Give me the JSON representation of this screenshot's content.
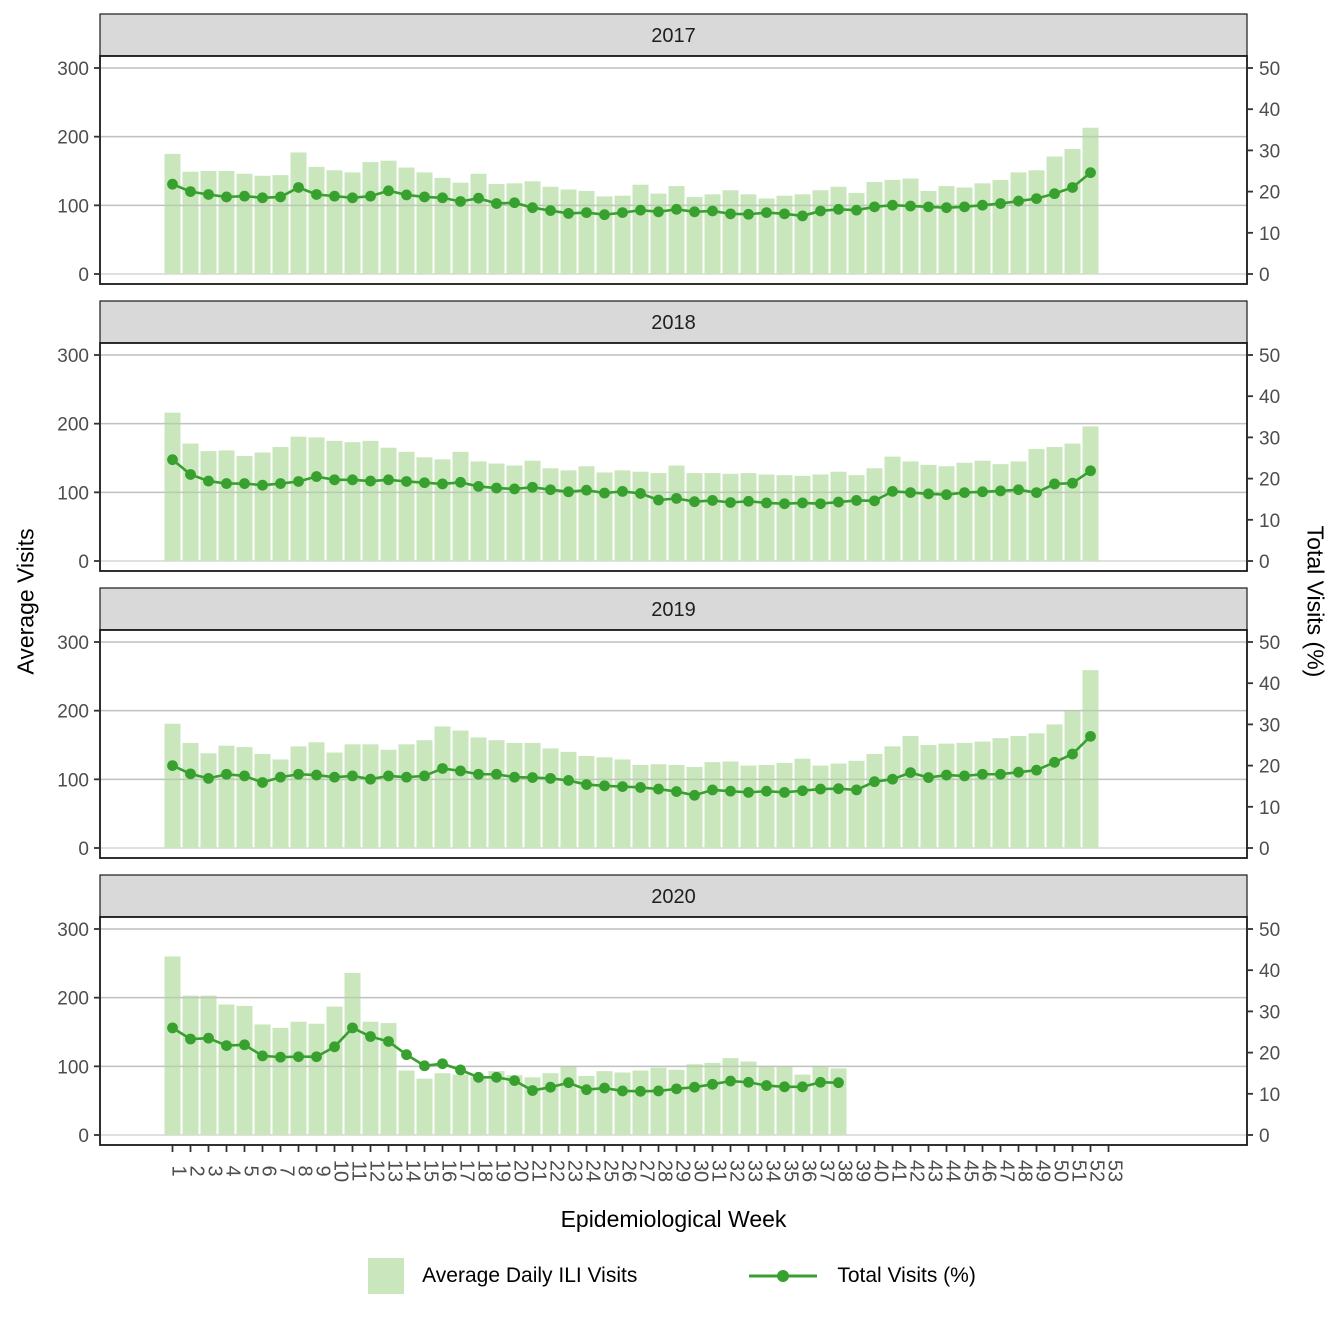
{
  "figure": {
    "x_axis_title": "Epidemiological Week",
    "y_axis_left_title": "Average Visits",
    "y_axis_right_title": "Total Visits (%)",
    "y_left_ticks": [
      0,
      100,
      200,
      300
    ],
    "y_right_ticks": [
      0,
      10,
      20,
      30,
      40,
      50
    ],
    "x_ticks": [
      1,
      2,
      3,
      4,
      5,
      6,
      7,
      8,
      9,
      10,
      11,
      12,
      13,
      14,
      15,
      16,
      17,
      18,
      19,
      20,
      21,
      22,
      23,
      24,
      25,
      26,
      27,
      28,
      29,
      30,
      31,
      32,
      33,
      34,
      35,
      36,
      37,
      38,
      39,
      40,
      41,
      42,
      43,
      44,
      45,
      46,
      47,
      48,
      49,
      50,
      51,
      52,
      53
    ],
    "y_left_range": [
      0,
      300
    ],
    "y_right_range": [
      0,
      50
    ],
    "grid": "horizontal-major-only",
    "facet_labels": [
      "2017",
      "2018",
      "2019",
      "2020"
    ]
  },
  "legend": {
    "position": "bottom-center",
    "bar_label": "Average Daily ILI Visits",
    "line_label": "Total Visits (%)"
  },
  "colors": {
    "bar_fill": "#c9e6bd",
    "line": "#38a02e",
    "strip_bg": "#d9d9d9",
    "strip_text": "#1f1f1f",
    "gridline": "#d6d6d6",
    "tick_label": "#4d4d4d",
    "panel_border": "#1a1a1a",
    "background": "#ffffff"
  },
  "chart_data": {
    "type": "bar+line",
    "layout": "4 stacked facets sharing x axis",
    "x_label": "Epidemiological Week",
    "bar_series_name": "Average Daily ILI Visits",
    "line_series_name": "Total Visits (%)",
    "bar_axis": "left (0-300)",
    "line_axis": "right (0-50 %)",
    "facets": [
      {
        "facet": "2017",
        "weeks_start": 1,
        "bars": [
          175,
          149,
          150,
          150,
          146,
          143,
          144,
          177,
          156,
          151,
          148,
          163,
          165,
          155,
          148,
          140,
          133,
          146,
          131,
          132,
          135,
          127,
          123,
          121,
          113,
          114,
          130,
          117,
          128,
          112,
          116,
          122,
          116,
          110,
          114,
          116,
          122,
          127,
          118,
          134,
          137,
          139,
          121,
          128,
          126,
          132,
          137,
          148,
          151,
          171,
          182,
          213
        ],
        "line_pct": [
          21.8,
          20.0,
          19.3,
          18.7,
          18.9,
          18.5,
          18.7,
          21.0,
          19.3,
          18.9,
          18.5,
          18.9,
          20.2,
          19.2,
          18.7,
          18.5,
          17.6,
          18.4,
          17.1,
          17.3,
          16.1,
          15.4,
          14.7,
          14.9,
          14.4,
          14.9,
          15.5,
          15.1,
          15.7,
          15.1,
          15.3,
          14.6,
          14.5,
          14.9,
          14.6,
          14.1,
          15.3,
          15.7,
          15.5,
          16.3,
          16.7,
          16.5,
          16.3,
          16.1,
          16.3,
          16.7,
          17.1,
          17.7,
          18.3,
          19.5,
          21.0,
          24.6
        ]
      },
      {
        "facet": "2018",
        "weeks_start": 1,
        "bars": [
          216,
          171,
          160,
          161,
          153,
          158,
          166,
          181,
          180,
          175,
          173,
          175,
          165,
          159,
          151,
          148,
          159,
          145,
          142,
          139,
          146,
          135,
          132,
          138,
          129,
          132,
          130,
          128,
          139,
          128,
          128,
          127,
          128,
          126,
          125,
          124,
          126,
          130,
          125,
          135,
          152,
          145,
          140,
          138,
          143,
          146,
          141,
          145,
          163,
          166,
          171,
          196
        ],
        "line_pct": [
          24.6,
          21.0,
          19.4,
          18.8,
          18.8,
          18.4,
          18.8,
          19.3,
          20.5,
          19.7,
          19.7,
          19.4,
          19.7,
          19.3,
          19.0,
          18.7,
          19.1,
          18.1,
          17.7,
          17.5,
          17.9,
          17.3,
          16.8,
          17.2,
          16.5,
          16.9,
          16.4,
          14.8,
          15.2,
          14.4,
          14.7,
          14.2,
          14.5,
          14.1,
          13.9,
          14.1,
          13.9,
          14.3,
          14.7,
          14.6,
          16.9,
          16.6,
          16.3,
          16.1,
          16.6,
          16.8,
          17.0,
          17.3,
          16.6,
          18.7,
          18.9,
          21.9
        ]
      },
      {
        "facet": "2019",
        "weeks_start": 1,
        "bars": [
          181,
          153,
          138,
          149,
          147,
          137,
          129,
          148,
          154,
          139,
          151,
          151,
          143,
          151,
          157,
          177,
          171,
          161,
          157,
          153,
          153,
          145,
          140,
          134,
          132,
          129,
          121,
          122,
          121,
          118,
          125,
          126,
          120,
          121,
          124,
          130,
          120,
          123,
          127,
          137,
          148,
          163,
          150,
          152,
          153,
          155,
          160,
          163,
          167,
          180,
          200,
          259
        ],
        "line_pct": [
          20.0,
          18.0,
          16.9,
          17.9,
          17.5,
          15.9,
          17.2,
          17.9,
          17.7,
          17.2,
          17.5,
          16.7,
          17.5,
          17.2,
          17.5,
          19.3,
          18.7,
          17.9,
          17.9,
          17.2,
          17.1,
          16.9,
          16.4,
          15.4,
          15.1,
          14.9,
          14.7,
          14.3,
          13.7,
          12.8,
          14.1,
          13.8,
          13.5,
          13.8,
          13.5,
          13.9,
          14.3,
          14.4,
          14.1,
          16.1,
          16.7,
          18.3,
          17.1,
          17.7,
          17.5,
          17.9,
          17.9,
          18.4,
          18.9,
          20.8,
          22.8,
          27.1
        ]
      },
      {
        "facet": "2020",
        "weeks_start": 1,
        "bars": [
          260,
          203,
          203,
          190,
          188,
          161,
          156,
          165,
          162,
          187,
          236,
          165,
          163,
          94,
          82,
          90,
          88,
          85,
          93,
          87,
          84,
          90,
          99,
          86,
          93,
          91,
          94,
          98,
          95,
          103,
          105,
          112,
          107,
          100,
          100,
          88,
          100,
          97
        ],
        "line_pct": [
          26.0,
          23.3,
          23.5,
          21.7,
          21.9,
          19.2,
          18.9,
          19.0,
          19.0,
          21.4,
          26.0,
          23.9,
          22.7,
          19.5,
          16.8,
          17.3,
          15.8,
          14.0,
          14.0,
          13.2,
          10.8,
          11.6,
          12.7,
          11.0,
          11.4,
          10.7,
          10.6,
          10.7,
          11.2,
          11.6,
          12.3,
          13.1,
          12.8,
          12.0,
          11.7,
          11.7,
          12.8,
          12.7
        ]
      }
    ]
  }
}
